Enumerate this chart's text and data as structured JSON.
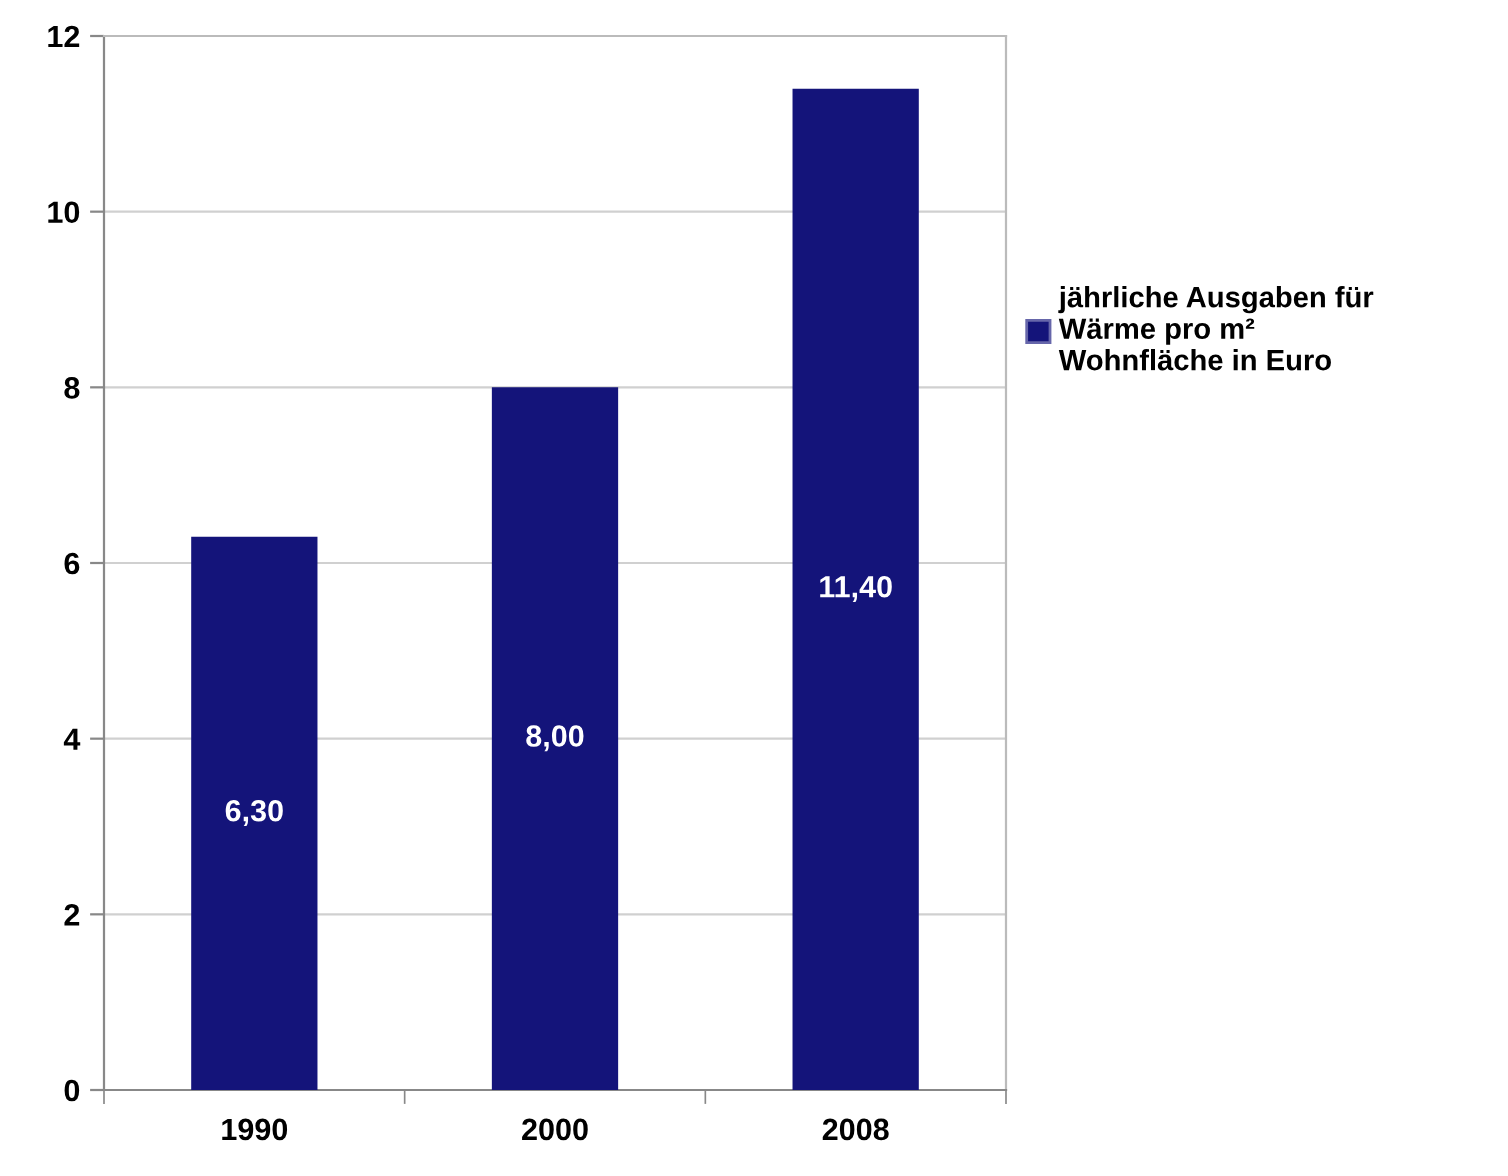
{
  "chart_data": {
    "type": "bar",
    "categories": [
      "1990",
      "2000",
      "2008"
    ],
    "series": [
      {
        "name": "jährliche Ausgaben für\nWärme pro m²\nWohnfläche in Euro",
        "color": "#14147a",
        "values": [
          6.3,
          8.0,
          11.4
        ],
        "value_labels": [
          "6,30",
          "8,00",
          "11,40"
        ]
      }
    ],
    "ylim": [
      0,
      12
    ],
    "yticks": [
      0,
      2,
      4,
      6,
      8,
      10,
      12
    ],
    "grid": "y",
    "legend": "right"
  }
}
